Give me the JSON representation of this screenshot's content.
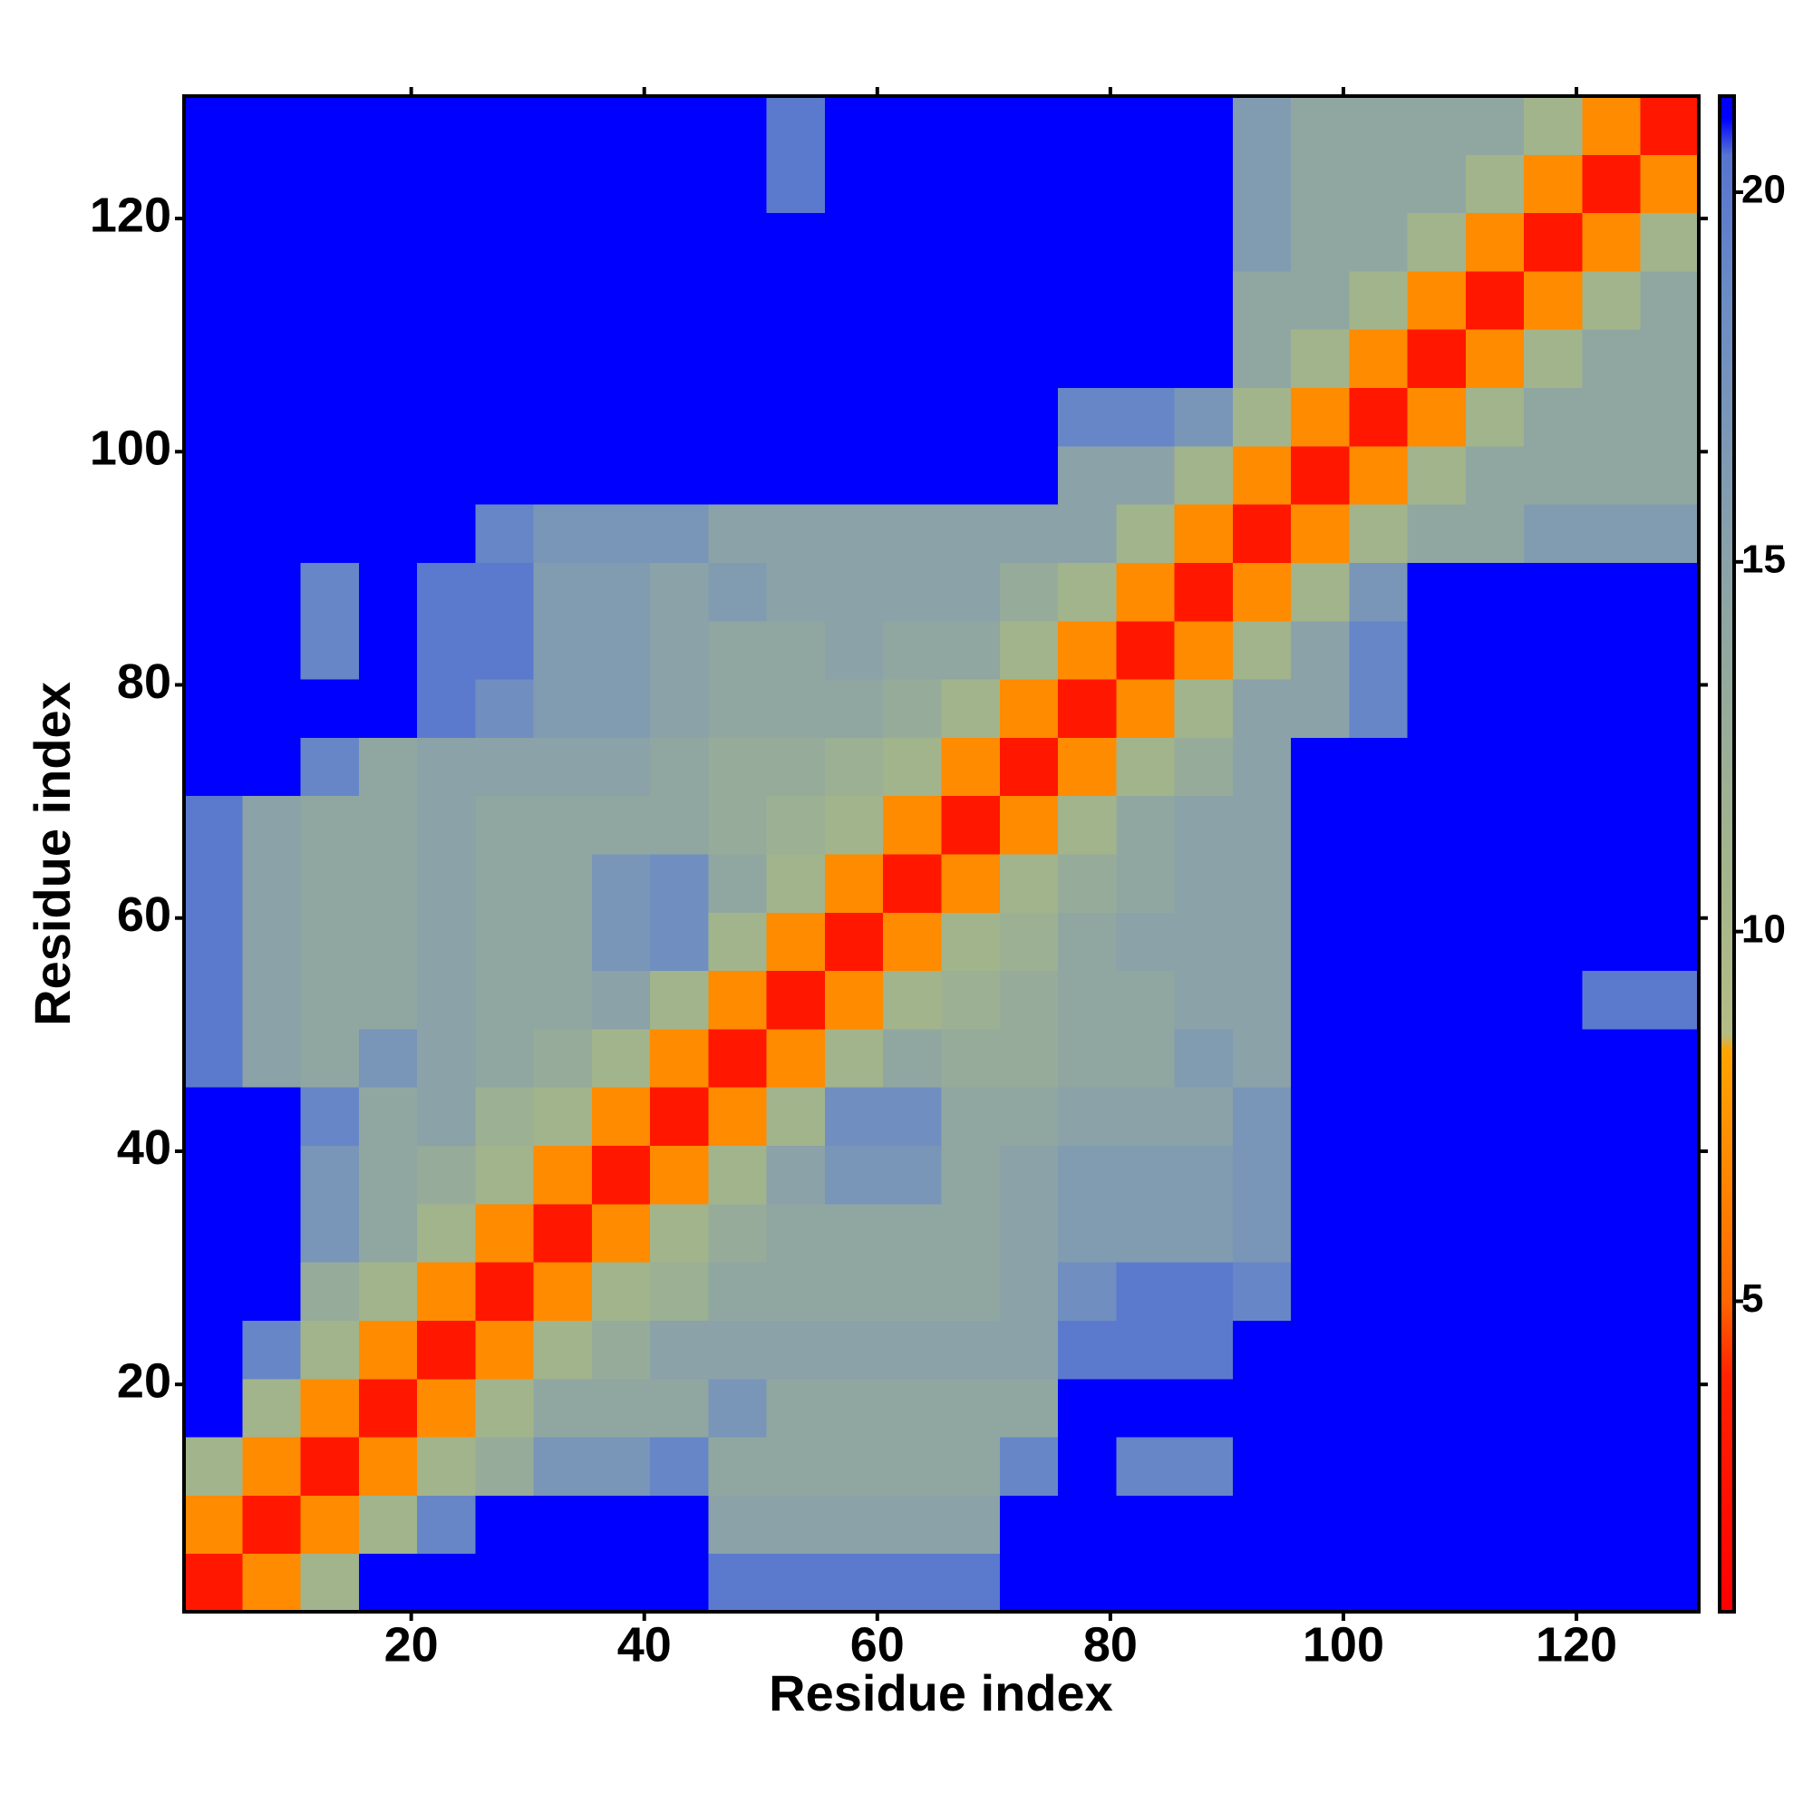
{
  "chart_data": {
    "type": "heatmap",
    "x_label": "Residue index",
    "y_label": "Residue index",
    "xlim": [
      0.5,
      130.5
    ],
    "ylim": [
      0.5,
      130.5
    ],
    "xticks": [
      20,
      40,
      60,
      80,
      100,
      120
    ],
    "yticks": [
      20,
      40,
      60,
      80,
      100,
      120
    ],
    "xbins": [
      0.5,
      5.5,
      10.5,
      15.5,
      20.5,
      25.5,
      30.5,
      35.5,
      40.5,
      45.5,
      50.5,
      55.5,
      60.5,
      65.5,
      70.5,
      75.5,
      80.5,
      85.5,
      90.5,
      95.5,
      100.5,
      105.5,
      110.5,
      115.5,
      120.5,
      125.5,
      130.5
    ],
    "ybins": [
      0.5,
      5.5,
      10.5,
      15.5,
      20.5,
      25.5,
      30.5,
      35.5,
      40.5,
      45.5,
      50.5,
      55.5,
      60.5,
      65.5,
      70.5,
      75.5,
      80.5,
      85.5,
      90.5,
      95.5,
      100.5,
      105.5,
      110.5,
      115.5,
      120.5,
      125.5,
      130.5
    ],
    "clim": [
      0.8,
      21.3
    ],
    "cticks": [
      5,
      10,
      15,
      20
    ],
    "colorscale": [
      [
        0.8,
        "#ff0000"
      ],
      [
        4,
        "#ff2200"
      ],
      [
        5,
        "#ff6600"
      ],
      [
        8.4,
        "#ffa500"
      ],
      [
        8.6,
        "#b4bc84"
      ],
      [
        11,
        "#a2b48c"
      ],
      [
        15,
        "#8aa2a8"
      ],
      [
        18.5,
        "#6c8cc4"
      ],
      [
        20.5,
        "#5674d0"
      ],
      [
        21,
        "#0000ff"
      ],
      [
        21.3,
        "#0000ff"
      ]
    ],
    "z": [
      [
        3,
        7,
        11,
        21,
        21,
        21,
        21,
        21,
        21,
        20,
        20,
        20,
        20,
        20,
        21,
        21,
        21,
        21,
        21,
        21,
        21,
        21,
        21,
        21,
        21,
        21
      ],
      [
        7,
        3,
        7,
        11,
        19,
        21,
        21,
        21,
        21,
        15,
        15,
        15,
        15,
        15,
        21,
        21,
        21,
        21,
        21,
        21,
        21,
        21,
        21,
        21,
        21,
        21
      ],
      [
        11,
        7,
        3,
        7,
        11,
        13,
        17,
        17,
        19,
        14,
        14,
        14,
        14,
        14,
        19,
        21,
        19,
        19,
        21,
        21,
        21,
        21,
        21,
        21,
        21,
        21
      ],
      [
        21,
        11,
        7,
        3,
        7,
        11,
        14,
        14,
        14,
        17,
        14,
        14,
        14,
        14,
        14,
        21,
        21,
        21,
        21,
        21,
        21,
        21,
        21,
        21,
        21,
        21
      ],
      [
        21,
        19,
        11,
        7,
        3,
        7,
        11,
        13,
        15,
        15,
        15,
        15,
        15,
        15,
        15,
        20,
        20,
        20,
        21,
        21,
        21,
        21,
        21,
        21,
        21,
        21
      ],
      [
        21,
        21,
        13,
        11,
        7,
        3,
        7,
        11,
        12,
        14,
        14,
        14,
        14,
        14,
        15,
        18,
        20,
        20,
        19,
        21,
        21,
        21,
        21,
        21,
        21,
        21
      ],
      [
        21,
        21,
        17,
        14,
        11,
        7,
        3,
        7,
        11,
        13,
        14,
        14,
        14,
        14,
        15,
        16,
        16,
        16,
        17,
        21,
        21,
        21,
        21,
        21,
        21,
        21
      ],
      [
        21,
        21,
        17,
        14,
        13,
        11,
        7,
        3,
        7,
        11,
        15,
        17,
        17,
        14,
        15,
        16,
        16,
        16,
        17,
        21,
        21,
        21,
        21,
        21,
        21,
        21
      ],
      [
        21,
        21,
        19,
        14,
        15,
        12,
        11,
        7,
        3,
        7,
        11,
        18,
        18,
        14,
        14,
        15,
        15,
        15,
        17,
        21,
        21,
        21,
        21,
        21,
        21,
        21
      ],
      [
        20,
        15,
        14,
        17,
        15,
        14,
        13,
        11,
        7,
        3,
        7,
        11,
        14,
        13,
        13,
        14,
        14,
        16,
        15,
        21,
        21,
        21,
        21,
        21,
        21,
        21
      ],
      [
        20,
        15,
        14,
        14,
        15,
        14,
        14,
        15,
        11,
        7,
        3,
        7,
        11,
        12,
        13,
        14,
        14,
        15,
        15,
        21,
        21,
        21,
        21,
        21,
        20,
        20
      ],
      [
        20,
        15,
        14,
        14,
        15,
        14,
        14,
        17,
        18,
        11,
        7,
        3,
        7,
        11,
        12,
        14,
        15,
        15,
        15,
        21,
        21,
        21,
        21,
        21,
        21,
        21
      ],
      [
        20,
        15,
        14,
        14,
        15,
        14,
        14,
        17,
        18,
        14,
        11,
        7,
        3,
        7,
        11,
        13,
        14,
        15,
        15,
        21,
        21,
        21,
        21,
        21,
        21,
        21
      ],
      [
        20,
        15,
        14,
        14,
        15,
        14,
        14,
        14,
        14,
        13,
        12,
        11,
        7,
        3,
        7,
        11,
        14,
        15,
        15,
        21,
        21,
        21,
        21,
        21,
        21,
        21
      ],
      [
        21,
        21,
        19,
        14,
        15,
        15,
        15,
        15,
        14,
        13,
        13,
        12,
        11,
        7,
        3,
        7,
        11,
        13,
        15,
        21,
        21,
        21,
        21,
        21,
        21,
        21
      ],
      [
        21,
        21,
        21,
        21,
        20,
        18,
        16,
        16,
        15,
        14,
        14,
        14,
        13,
        11,
        7,
        3,
        7,
        11,
        15,
        15,
        19,
        21,
        21,
        21,
        21,
        21
      ],
      [
        21,
        21,
        19,
        21,
        20,
        20,
        16,
        16,
        15,
        14,
        14,
        15,
        14,
        14,
        11,
        7,
        3,
        7,
        11,
        15,
        19,
        21,
        21,
        21,
        21,
        21
      ],
      [
        21,
        21,
        19,
        21,
        20,
        20,
        16,
        16,
        15,
        16,
        15,
        15,
        15,
        15,
        13,
        11,
        7,
        3,
        7,
        11,
        17,
        21,
        21,
        21,
        21,
        21
      ],
      [
        21,
        21,
        21,
        21,
        21,
        19,
        17,
        17,
        17,
        15,
        15,
        15,
        15,
        15,
        15,
        15,
        11,
        7,
        3,
        7,
        11,
        14,
        14,
        16,
        16,
        16
      ],
      [
        21,
        21,
        21,
        21,
        21,
        21,
        21,
        21,
        21,
        21,
        21,
        21,
        21,
        21,
        21,
        15,
        15,
        11,
        7,
        3,
        7,
        11,
        14,
        14,
        14,
        14
      ],
      [
        21,
        21,
        21,
        21,
        21,
        21,
        21,
        21,
        21,
        21,
        21,
        21,
        21,
        21,
        21,
        19,
        19,
        17,
        11,
        7,
        3,
        7,
        11,
        14,
        14,
        14
      ],
      [
        21,
        21,
        21,
        21,
        21,
        21,
        21,
        21,
        21,
        21,
        21,
        21,
        21,
        21,
        21,
        21,
        21,
        21,
        14,
        11,
        7,
        3,
        7,
        11,
        14,
        14
      ],
      [
        21,
        21,
        21,
        21,
        21,
        21,
        21,
        21,
        21,
        21,
        21,
        21,
        21,
        21,
        21,
        21,
        21,
        21,
        14,
        14,
        11,
        7,
        3,
        7,
        11,
        14
      ],
      [
        21,
        21,
        21,
        21,
        21,
        21,
        21,
        21,
        21,
        21,
        21,
        21,
        21,
        21,
        21,
        21,
        21,
        21,
        16,
        14,
        14,
        11,
        7,
        3,
        7,
        11
      ],
      [
        21,
        21,
        21,
        21,
        21,
        21,
        21,
        21,
        21,
        21,
        20,
        21,
        21,
        21,
        21,
        21,
        21,
        21,
        16,
        14,
        14,
        14,
        11,
        7,
        3,
        7
      ],
      [
        21,
        21,
        21,
        21,
        21,
        21,
        21,
        21,
        21,
        21,
        20,
        21,
        21,
        21,
        21,
        21,
        21,
        21,
        16,
        14,
        14,
        14,
        14,
        11,
        7,
        3
      ]
    ]
  }
}
